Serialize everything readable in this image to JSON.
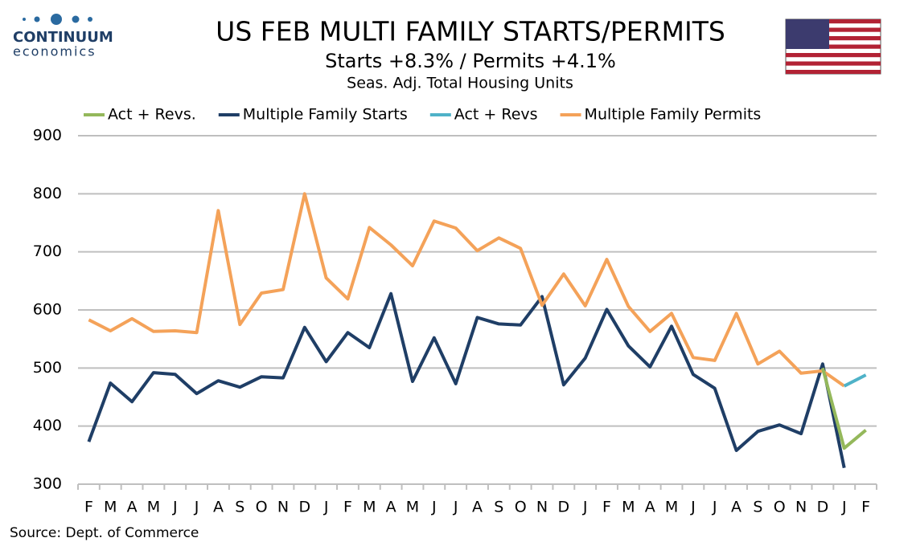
{
  "logo": {
    "name": "CONTINUUM",
    "tagline": "economics"
  },
  "chart_data": {
    "type": "line",
    "title": "US FEB MULTI FAMILY STARTS/PERMITS",
    "subtitle": "Starts  +8.3% / Permits +4.1%",
    "y_label": "Seas. Adj. Total Housing Units",
    "source": "Source: Dept. of Commerce",
    "categories": [
      "F",
      "M",
      "A",
      "M",
      "J",
      "J",
      "A",
      "S",
      "O",
      "N",
      "D",
      "J",
      "F",
      "M",
      "A",
      "M",
      "J",
      "J",
      "A",
      "S",
      "O",
      "N",
      "D",
      "J",
      "F",
      "M",
      "A",
      "M",
      "J",
      "J",
      "A",
      "S",
      "O",
      "N",
      "D",
      "J",
      "F"
    ],
    "series": [
      {
        "name": "Act + Revs.",
        "color": "#94b85b",
        "values": [
          null,
          null,
          null,
          null,
          null,
          null,
          null,
          null,
          null,
          null,
          null,
          null,
          null,
          null,
          null,
          null,
          null,
          null,
          null,
          null,
          null,
          null,
          null,
          null,
          null,
          null,
          null,
          null,
          null,
          null,
          null,
          null,
          null,
          null,
          500,
          362,
          393
        ]
      },
      {
        "name": "Multiple Family Starts",
        "color": "#1f3e66",
        "values": [
          373,
          474,
          442,
          492,
          489,
          456,
          478,
          467,
          485,
          483,
          570,
          511,
          561,
          535,
          628,
          477,
          552,
          473,
          587,
          576,
          574,
          623,
          471,
          517,
          601,
          538,
          502,
          572,
          489,
          465,
          358,
          391,
          402,
          387,
          507,
          328,
          null
        ]
      },
      {
        "name": "Act + Revs",
        "color": "#4fb2c8",
        "values": [
          null,
          null,
          null,
          null,
          null,
          null,
          null,
          null,
          null,
          null,
          null,
          null,
          null,
          null,
          null,
          null,
          null,
          null,
          null,
          null,
          null,
          null,
          null,
          null,
          null,
          null,
          null,
          null,
          null,
          null,
          null,
          null,
          null,
          null,
          null,
          469,
          488
        ]
      },
      {
        "name": "Multiple Family Permits",
        "color": "#f4a259",
        "values": [
          583,
          564,
          585,
          563,
          564,
          561,
          771,
          575,
          629,
          635,
          800,
          655,
          619,
          742,
          712,
          676,
          753,
          741,
          702,
          724,
          706,
          608,
          662,
          607,
          687,
          606,
          563,
          594,
          518,
          513,
          594,
          507,
          529,
          491,
          495,
          469,
          null
        ]
      }
    ],
    "ylim": [
      300,
      900
    ],
    "yticks": [
      300,
      400,
      500,
      600,
      700,
      800,
      900
    ],
    "grid": true,
    "legend": "top"
  }
}
